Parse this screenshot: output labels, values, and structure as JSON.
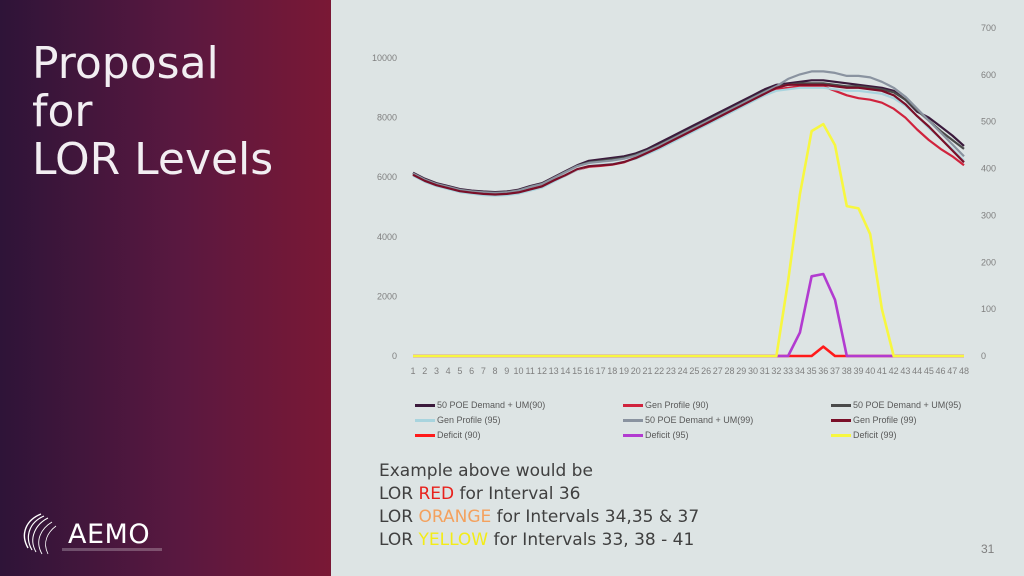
{
  "slide": {
    "title_lines": [
      "Proposal",
      "for",
      "LOR Levels"
    ],
    "logo_text": "AEMO",
    "page_number": "31"
  },
  "note": {
    "line1": "Example above would be",
    "line2_prefix": "LOR ",
    "line2_level": "RED",
    "line2_suffix": " for Interval 36",
    "line3_prefix": "LOR ",
    "line3_level": "ORANGE",
    "line3_suffix": " for Intervals 34,35 & 37",
    "line4_prefix": "LOR ",
    "line4_level": "YELLOW",
    "line4_suffix": " for Intervals 33, 38 - 41"
  },
  "colors": {
    "red": "#e8211c",
    "orange": "#f4a15d",
    "yellow": "#f3ec17"
  },
  "chart_data": {
    "type": "line",
    "x": [
      1,
      2,
      3,
      4,
      5,
      6,
      7,
      8,
      9,
      10,
      11,
      12,
      13,
      14,
      15,
      16,
      17,
      18,
      19,
      20,
      21,
      22,
      23,
      24,
      25,
      26,
      27,
      28,
      29,
      30,
      31,
      32,
      33,
      34,
      35,
      36,
      37,
      38,
      39,
      40,
      41,
      42,
      43,
      44,
      45,
      46,
      47,
      48
    ],
    "y_left_ticks": [
      0,
      2000,
      4000,
      6000,
      8000,
      10000
    ],
    "y_left_lim": [
      0,
      10000
    ],
    "y_right_ticks": [
      0,
      100,
      200,
      300,
      400,
      500,
      600,
      700
    ],
    "y_right_lim": [
      0,
      700
    ],
    "series": [
      {
        "name": "50 POE Demand + UM(90)",
        "axis": "left",
        "color": "#3b1a3c",
        "values": [
          6150,
          5950,
          5800,
          5700,
          5600,
          5550,
          5520,
          5500,
          5520,
          5580,
          5700,
          5800,
          6000,
          6200,
          6400,
          6550,
          6600,
          6650,
          6700,
          6800,
          6950,
          7150,
          7350,
          7550,
          7750,
          7950,
          8150,
          8350,
          8550,
          8750,
          8950,
          9100,
          9150,
          9200,
          9250,
          9250,
          9200,
          9150,
          9100,
          9050,
          9000,
          8900,
          8600,
          8200,
          8000,
          7700,
          7400,
          7050
        ]
      },
      {
        "name": "Gen Profile (90)",
        "axis": "left",
        "color": "#d0233d",
        "values": [
          6100,
          5900,
          5750,
          5650,
          5550,
          5500,
          5450,
          5430,
          5450,
          5500,
          5600,
          5700,
          5900,
          6050,
          6250,
          6350,
          6380,
          6420,
          6500,
          6650,
          6850,
          7050,
          7250,
          7450,
          7650,
          7850,
          8050,
          8250,
          8450,
          8650,
          8850,
          8950,
          9000,
          9050,
          9050,
          9050,
          8900,
          8750,
          8650,
          8600,
          8500,
          8300,
          8000,
          7600,
          7250,
          6950,
          6700,
          6400
        ]
      },
      {
        "name": "50 POE Demand + UM(95)",
        "axis": "left",
        "color": "#4a4a4a",
        "values": [
          6130,
          5930,
          5780,
          5680,
          5580,
          5530,
          5500,
          5480,
          5500,
          5560,
          5680,
          5780,
          5980,
          6180,
          6380,
          6500,
          6550,
          6600,
          6650,
          6750,
          6900,
          7080,
          7280,
          7480,
          7680,
          7880,
          8080,
          8280,
          8480,
          8680,
          8880,
          9050,
          9100,
          9150,
          9150,
          9150,
          9100,
          9050,
          9050,
          9000,
          8950,
          8850,
          8600,
          8250,
          7900,
          7550,
          7250,
          6950
        ]
      },
      {
        "name": "Gen Profile (95)",
        "axis": "left",
        "color": "#a8d4de",
        "values": [
          6050,
          5850,
          5700,
          5600,
          5500,
          5450,
          5400,
          5380,
          5400,
          5450,
          5550,
          5650,
          5850,
          6050,
          6250,
          6380,
          6420,
          6450,
          6520,
          6620,
          6780,
          6950,
          7150,
          7350,
          7550,
          7750,
          7950,
          8150,
          8350,
          8550,
          8750,
          8900,
          8950,
          9000,
          9000,
          9000,
          8950,
          8900,
          8900,
          8850,
          8800,
          8650,
          8400,
          8050,
          7650,
          7300,
          6950,
          6550
        ]
      },
      {
        "name": "50 POE Demand + UM(99)",
        "axis": "left",
        "color": "#8a93a0",
        "values": [
          6120,
          5920,
          5770,
          5670,
          5570,
          5520,
          5490,
          5470,
          5490,
          5550,
          5670,
          5770,
          5970,
          6170,
          6370,
          6480,
          6520,
          6560,
          6620,
          6720,
          6880,
          7060,
          7260,
          7460,
          7660,
          7860,
          8060,
          8260,
          8460,
          8660,
          8860,
          9050,
          9300,
          9450,
          9550,
          9550,
          9500,
          9400,
          9400,
          9350,
          9200,
          9000,
          8700,
          8300,
          7900,
          7500,
          7100,
          6700
        ]
      },
      {
        "name": "Gen Profile (99)",
        "axis": "left",
        "color": "#7a0f28",
        "values": [
          6080,
          5880,
          5730,
          5630,
          5530,
          5480,
          5440,
          5420,
          5440,
          5490,
          5590,
          5690,
          5890,
          6070,
          6270,
          6370,
          6400,
          6430,
          6510,
          6640,
          6820,
          7000,
          7200,
          7400,
          7600,
          7800,
          8000,
          8200,
          8400,
          8600,
          8800,
          9000,
          9100,
          9100,
          9100,
          9100,
          9050,
          9000,
          9000,
          8950,
          8900,
          8750,
          8450,
          8050,
          7700,
          7300,
          6900,
          6500
        ]
      },
      {
        "name": "Deficit (90)",
        "axis": "right",
        "color": "#ff1a1a",
        "values": [
          0,
          0,
          0,
          0,
          0,
          0,
          0,
          0,
          0,
          0,
          0,
          0,
          0,
          0,
          0,
          0,
          0,
          0,
          0,
          0,
          0,
          0,
          0,
          0,
          0,
          0,
          0,
          0,
          0,
          0,
          0,
          0,
          0,
          0,
          0,
          20,
          0,
          0,
          0,
          0,
          0,
          0,
          0,
          0,
          0,
          0,
          0,
          0
        ]
      },
      {
        "name": "Deficit (95)",
        "axis": "right",
        "color": "#b23bd0",
        "values": [
          0,
          0,
          0,
          0,
          0,
          0,
          0,
          0,
          0,
          0,
          0,
          0,
          0,
          0,
          0,
          0,
          0,
          0,
          0,
          0,
          0,
          0,
          0,
          0,
          0,
          0,
          0,
          0,
          0,
          0,
          0,
          0,
          0,
          50,
          170,
          175,
          120,
          0,
          0,
          0,
          0,
          0,
          0,
          0,
          0,
          0,
          0,
          0
        ]
      },
      {
        "name": "Deficit (99)",
        "axis": "right",
        "color": "#f7f740",
        "values": [
          0,
          0,
          0,
          0,
          0,
          0,
          0,
          0,
          0,
          0,
          0,
          0,
          0,
          0,
          0,
          0,
          0,
          0,
          0,
          0,
          0,
          0,
          0,
          0,
          0,
          0,
          0,
          0,
          0,
          0,
          0,
          0,
          160,
          345,
          480,
          495,
          450,
          320,
          315,
          260,
          100,
          0,
          0,
          0,
          0,
          0,
          0,
          0
        ]
      }
    ],
    "grid": false,
    "legend_position": "bottom",
    "legend_order": [
      "50 POE Demand + UM(90)",
      "Gen Profile (90)",
      "50 POE Demand + UM(95)",
      "Gen Profile (95)",
      "50 POE Demand + UM(99)",
      "Gen Profile (99)",
      "Deficit (90)",
      "Deficit (95)",
      "Deficit (99)"
    ]
  }
}
